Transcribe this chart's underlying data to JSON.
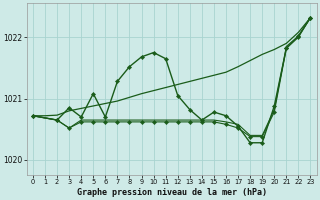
{
  "background_color": "#ceeae7",
  "grid_color": "#a8d4d0",
  "line_color": "#1a5c1a",
  "title": "Graphe pression niveau de la mer (hPa)",
  "xlim": [
    -0.5,
    23.5
  ],
  "ylim": [
    1019.75,
    1022.55
  ],
  "yticks": [
    1020,
    1021,
    1022
  ],
  "xticks": [
    0,
    1,
    2,
    3,
    4,
    5,
    6,
    7,
    8,
    9,
    10,
    11,
    12,
    13,
    14,
    15,
    16,
    17,
    18,
    19,
    20,
    21,
    22,
    23
  ],
  "curve1_x": [
    0,
    1,
    2,
    3,
    4,
    5,
    6,
    7,
    8,
    9,
    10,
    11,
    12,
    13,
    14,
    15,
    16,
    17,
    18,
    19,
    20,
    21,
    22,
    23
  ],
  "curve1_y": [
    1020.72,
    1020.72,
    1020.73,
    1020.8,
    1020.84,
    1020.88,
    1020.92,
    1020.96,
    1021.02,
    1021.08,
    1021.13,
    1021.18,
    1021.23,
    1021.28,
    1021.33,
    1021.38,
    1021.43,
    1021.52,
    1021.62,
    1021.72,
    1021.8,
    1021.9,
    1022.08,
    1022.32
  ],
  "curve2_x": [
    0,
    2,
    3,
    4,
    5,
    6,
    7,
    8,
    9,
    10,
    11,
    12,
    13,
    14,
    15,
    16,
    17,
    18,
    19,
    20,
    21,
    22,
    23
  ],
  "curve2_y": [
    1020.72,
    1020.65,
    1020.85,
    1020.7,
    1021.08,
    1020.7,
    1021.28,
    1021.52,
    1021.68,
    1021.75,
    1021.65,
    1021.05,
    1020.82,
    1020.65,
    1020.78,
    1020.72,
    1020.55,
    1020.28,
    1020.28,
    1020.88,
    1021.82,
    1022.02,
    1022.32
  ],
  "curve3_x": [
    0,
    2,
    3,
    4,
    5,
    6,
    7,
    8,
    9,
    10,
    11,
    12,
    13,
    14,
    15,
    16,
    17,
    18,
    19,
    20,
    21,
    22,
    23
  ],
  "curve3_y": [
    1020.72,
    1020.65,
    1020.52,
    1020.65,
    1020.65,
    1020.65,
    1020.65,
    1020.65,
    1020.65,
    1020.65,
    1020.65,
    1020.65,
    1020.65,
    1020.65,
    1020.65,
    1020.62,
    1020.58,
    1020.4,
    1020.4,
    1020.82,
    1021.85,
    1022.02,
    1022.32
  ],
  "curve4_x": [
    0,
    2,
    3,
    4,
    5,
    6,
    7,
    8,
    9,
    10,
    11,
    12,
    13,
    14,
    15,
    16,
    17,
    18,
    19,
    20,
    21,
    22,
    23
  ],
  "curve4_y": [
    1020.72,
    1020.65,
    1020.52,
    1020.62,
    1020.62,
    1020.62,
    1020.62,
    1020.62,
    1020.62,
    1020.62,
    1020.62,
    1020.62,
    1020.62,
    1020.62,
    1020.62,
    1020.58,
    1020.52,
    1020.38,
    1020.38,
    1020.78,
    1021.82,
    1022.0,
    1022.32
  ]
}
